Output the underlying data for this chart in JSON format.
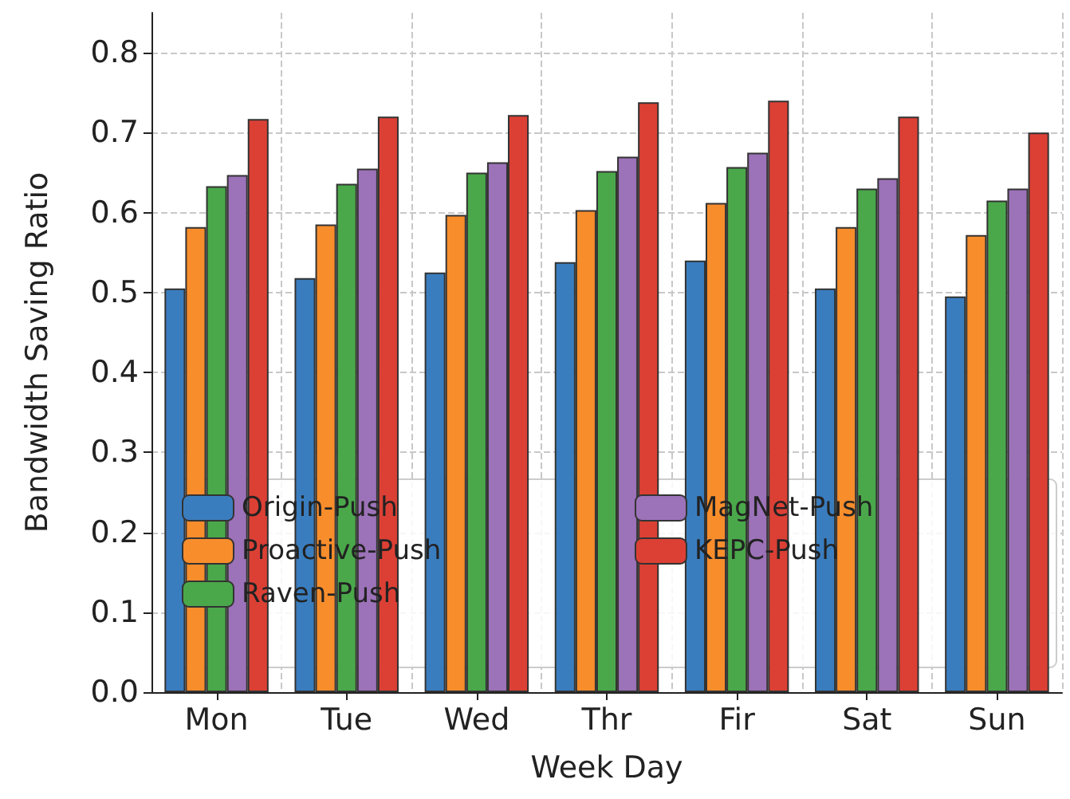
{
  "chart_data": {
    "type": "bar",
    "xlabel": "Week Day",
    "ylabel": "Bandwidth Saving Ratio",
    "categories": [
      "Mon",
      "Tue",
      "Wed",
      "Thr",
      "Fir",
      "Sat",
      "Sun"
    ],
    "series": [
      {
        "name": "Origin-Push",
        "color": "#3a7dbf",
        "values": [
          0.505,
          0.518,
          0.525,
          0.538,
          0.54,
          0.505,
          0.495
        ]
      },
      {
        "name": "Proactive-Push",
        "color": "#f88d2c",
        "values": [
          0.582,
          0.585,
          0.597,
          0.603,
          0.612,
          0.582,
          0.572
        ]
      },
      {
        "name": "Raven-Push",
        "color": "#4aa84a",
        "values": [
          0.633,
          0.636,
          0.65,
          0.652,
          0.657,
          0.63,
          0.615
        ]
      },
      {
        "name": "MagNet-Push",
        "color": "#9c72b8",
        "values": [
          0.647,
          0.655,
          0.663,
          0.67,
          0.675,
          0.643,
          0.63
        ]
      },
      {
        "name": "KEPC-Push",
        "color": "#dc4035",
        "values": [
          0.717,
          0.72,
          0.722,
          0.738,
          0.74,
          0.72,
          0.7
        ]
      }
    ],
    "ylim": [
      0,
      0.85
    ],
    "yticks": [
      {
        "value": 0,
        "label": "0.0"
      },
      0.1,
      0.2,
      0.3,
      0.4,
      0.5,
      0.6,
      0.7,
      0.8
    ],
    "grid": true,
    "legend": "bottom"
  }
}
